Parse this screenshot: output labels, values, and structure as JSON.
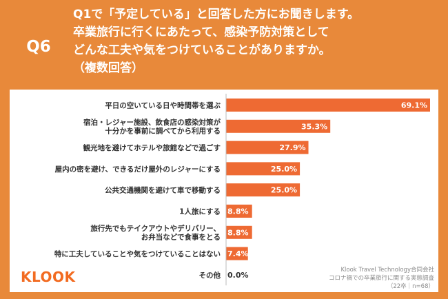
{
  "header": {
    "badge": "Q6",
    "question_lines": [
      "Q1で「予定している」と回答した方にお聞きします。",
      "卒業旅行に行くにあたって、感染予防対策として",
      "どんな工夫や気をつけていることがありますか。",
      "（複数回答）"
    ]
  },
  "footer": {
    "logo": "KLOOK",
    "source_lines": [
      "Klook Travel Technology合同会社",
      "コロナ禍での卒業旅行に関する実態調査",
      "（22卒｜n=68）"
    ]
  },
  "colors": {
    "background": "#e8893a",
    "bar": "#ee6a33",
    "brand": "#f26b21"
  },
  "chart_data": {
    "type": "bar",
    "orientation": "horizontal",
    "categories": [
      [
        "平日の空いている日や時間帯を選ぶ"
      ],
      [
        "宿泊・レジャー施設、飲食店の感染対策が",
        "十分かを事前に調べてから利用する"
      ],
      [
        "観光地を避けてホテルや旅館などで過ごす"
      ],
      [
        "屋内の密を避け、できるだけ屋外のレジャーにする"
      ],
      [
        "公共交通機関を避けて車で移動する"
      ],
      [
        "1人旅にする"
      ],
      [
        "旅行先でもテイクアウトやデリバリー、",
        "お弁当などで食事をとる"
      ],
      [
        "特に工夫していることや気をつけていることはない"
      ],
      [
        "その他"
      ]
    ],
    "values": [
      69.1,
      35.3,
      27.9,
      25.0,
      25.0,
      8.8,
      8.8,
      7.4,
      0.0
    ],
    "value_labels": [
      "69.1%",
      "35.3%",
      "27.9%",
      "25.0%",
      "25.0%",
      "8.8%",
      "8.8%",
      "7.4%",
      "0.0%"
    ],
    "xlim": [
      0,
      69.1
    ],
    "grid": false,
    "legend": "none"
  }
}
